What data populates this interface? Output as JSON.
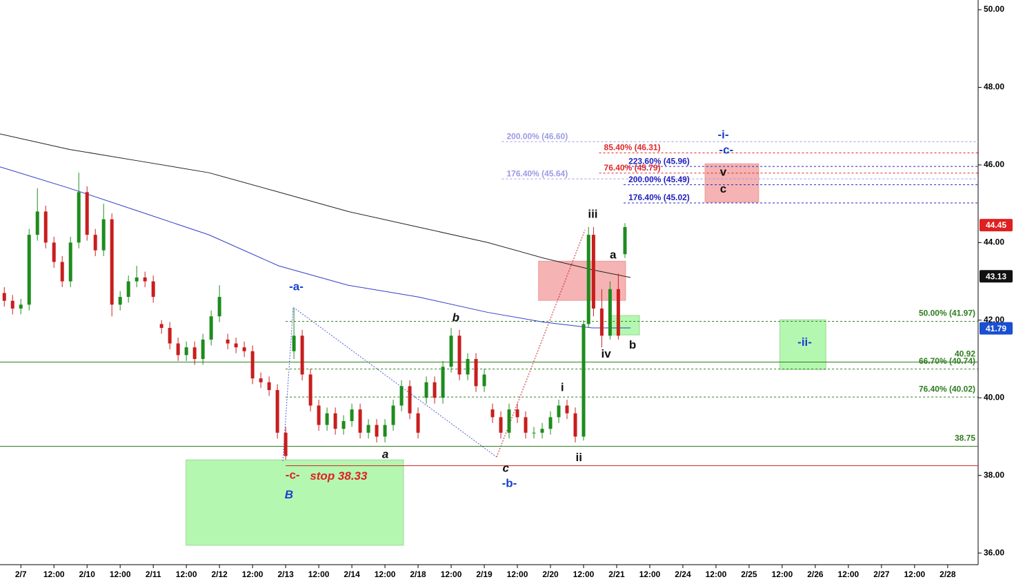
{
  "chart_data": {
    "type": "candlestick",
    "xlim": [
      -0.63,
      28.92
    ],
    "ylim": [
      35.7,
      50.25
    ],
    "xticks": [
      {
        "value": 0,
        "label": "2/7"
      },
      {
        "value": 1,
        "label": "12:00"
      },
      {
        "value": 2,
        "label": "2/10"
      },
      {
        "value": 3,
        "label": "12:00"
      },
      {
        "value": 4,
        "label": "2/11"
      },
      {
        "value": 5,
        "label": "12:00"
      },
      {
        "value": 6,
        "label": "2/12"
      },
      {
        "value": 7,
        "label": "12:00"
      },
      {
        "value": 8,
        "label": "2/13"
      },
      {
        "value": 9,
        "label": "12:00"
      },
      {
        "value": 10,
        "label": "2/14"
      },
      {
        "value": 11,
        "label": "12:00"
      },
      {
        "value": 12,
        "label": "2/18"
      },
      {
        "value": 13,
        "label": "12:00"
      },
      {
        "value": 14,
        "label": "2/19"
      },
      {
        "value": 15,
        "label": "12:00"
      },
      {
        "value": 16,
        "label": "2/20"
      },
      {
        "value": 17,
        "label": "12:00"
      },
      {
        "value": 18,
        "label": "2/21"
      },
      {
        "value": 19,
        "label": "12:00"
      },
      {
        "value": 20,
        "label": "2/24"
      },
      {
        "value": 21,
        "label": "12:00"
      },
      {
        "value": 22,
        "label": "2/25"
      },
      {
        "value": 23,
        "label": "12:00"
      },
      {
        "value": 24,
        "label": "2/26"
      },
      {
        "value": 25,
        "label": "12:00"
      },
      {
        "value": 26,
        "label": "2/27"
      },
      {
        "value": 27,
        "label": "12:00"
      },
      {
        "value": 28,
        "label": "2/28"
      }
    ],
    "yticks": [
      {
        "value": 36,
        "label": "36.00"
      },
      {
        "value": 38,
        "label": "38.00"
      },
      {
        "value": 40,
        "label": "40.00"
      },
      {
        "value": 42,
        "label": "42.00"
      },
      {
        "value": 44,
        "label": "44.00"
      },
      {
        "value": 46,
        "label": "46.00"
      },
      {
        "value": 48,
        "label": "48.00"
      },
      {
        "value": 50,
        "label": "50.00"
      }
    ],
    "up_color": "#1e8c1e",
    "down_color": "#c81e1e",
    "x": [
      -0.5,
      -0.25,
      0,
      0.25,
      0.5,
      0.75,
      1,
      1.25,
      1.5,
      1.75,
      2,
      2.25,
      2.5,
      2.75,
      3,
      3.25,
      3.5,
      3.75,
      4,
      4.25,
      4.5,
      4.75,
      5,
      5.25,
      5.5,
      5.75,
      6,
      6.25,
      6.5,
      6.75,
      7,
      7.25,
      7.5,
      7.75,
      8,
      8.25,
      8.5,
      8.75,
      9,
      9.25,
      9.5,
      9.75,
      10,
      10.25,
      10.5,
      10.75,
      11,
      11.25,
      11.5,
      11.75,
      12,
      12.25,
      12.5,
      12.75,
      13,
      13.25,
      13.5,
      13.75,
      14,
      14.25,
      14.5,
      14.75,
      15,
      15.25,
      15.5,
      15.75,
      16,
      16.25,
      16.5,
      16.75,
      17,
      17.15,
      17.3,
      17.55,
      17.8,
      18.05,
      18.25
    ],
    "ohlc": [
      [
        42.7,
        42.85,
        42.35,
        42.5
      ],
      [
        42.5,
        42.65,
        42.15,
        42.3
      ],
      [
        42.3,
        42.55,
        42.15,
        42.4
      ],
      [
        42.4,
        44.35,
        42.25,
        44.2
      ],
      [
        44.2,
        45.4,
        44.05,
        44.8
      ],
      [
        44.8,
        44.95,
        43.85,
        44.0
      ],
      [
        44.0,
        44.15,
        43.35,
        43.5
      ],
      [
        43.5,
        43.65,
        42.85,
        43.0
      ],
      [
        43.0,
        44.15,
        42.85,
        44.0
      ],
      [
        44.0,
        45.8,
        43.85,
        45.3
      ],
      [
        45.3,
        45.45,
        44.05,
        44.2
      ],
      [
        44.2,
        44.35,
        43.65,
        43.8
      ],
      [
        43.8,
        45.0,
        43.65,
        44.6
      ],
      [
        44.6,
        44.75,
        42.1,
        42.4
      ],
      [
        42.4,
        42.75,
        42.25,
        42.6
      ],
      [
        42.6,
        43.15,
        42.45,
        43.0
      ],
      [
        43.0,
        43.4,
        42.85,
        43.1
      ],
      [
        43.1,
        43.25,
        42.85,
        43.0
      ],
      [
        43.0,
        43.15,
        42.45,
        42.6
      ],
      [
        41.9,
        42.0,
        41.65,
        41.8
      ],
      [
        41.8,
        41.95,
        41.25,
        41.4
      ],
      [
        41.4,
        41.55,
        40.95,
        41.1
      ],
      [
        41.1,
        41.45,
        40.95,
        41.3
      ],
      [
        41.3,
        41.45,
        40.85,
        41.0
      ],
      [
        41.0,
        41.65,
        40.85,
        41.5
      ],
      [
        41.5,
        42.25,
        41.35,
        42.1
      ],
      [
        42.1,
        42.9,
        41.95,
        42.6
      ],
      [
        41.5,
        41.65,
        41.25,
        41.4
      ],
      [
        41.4,
        41.55,
        41.15,
        41.3
      ],
      [
        41.3,
        41.45,
        41.05,
        41.2
      ],
      [
        41.2,
        41.35,
        40.35,
        40.5
      ],
      [
        40.5,
        40.65,
        40.25,
        40.4
      ],
      [
        40.4,
        40.55,
        40.05,
        40.2
      ],
      [
        40.2,
        40.35,
        38.95,
        39.1
      ],
      [
        39.1,
        39.25,
        38.4,
        38.5
      ],
      [
        41.2,
        42.3,
        41.0,
        41.6
      ],
      [
        41.6,
        41.75,
        40.45,
        40.6
      ],
      [
        40.6,
        40.75,
        39.65,
        39.8
      ],
      [
        39.8,
        39.95,
        39.15,
        39.3
      ],
      [
        39.3,
        39.75,
        39.15,
        39.6
      ],
      [
        39.6,
        39.75,
        39.05,
        39.2
      ],
      [
        39.2,
        39.55,
        39.05,
        39.4
      ],
      [
        39.4,
        39.85,
        39.25,
        39.7
      ],
      [
        39.7,
        39.85,
        38.95,
        39.1
      ],
      [
        39.1,
        39.45,
        38.95,
        39.3
      ],
      [
        39.3,
        39.45,
        38.85,
        39.0
      ],
      [
        39.0,
        39.45,
        38.85,
        39.3
      ],
      [
        39.3,
        39.95,
        39.15,
        39.8
      ],
      [
        39.8,
        40.45,
        39.65,
        40.3
      ],
      [
        40.3,
        40.45,
        39.45,
        39.6
      ],
      [
        39.6,
        39.75,
        38.95,
        39.1
      ],
      [
        40.0,
        40.55,
        39.85,
        40.4
      ],
      [
        40.4,
        40.55,
        39.85,
        40.0
      ],
      [
        40.0,
        40.95,
        39.85,
        40.8
      ],
      [
        40.8,
        41.8,
        40.65,
        41.6
      ],
      [
        41.6,
        41.75,
        40.45,
        40.6
      ],
      [
        40.6,
        41.15,
        40.45,
        41.0
      ],
      [
        41.0,
        41.15,
        40.15,
        40.3
      ],
      [
        40.3,
        40.75,
        40.15,
        40.6
      ],
      [
        39.7,
        39.85,
        39.35,
        39.5
      ],
      [
        39.5,
        39.65,
        38.95,
        39.1
      ],
      [
        39.1,
        39.85,
        38.95,
        39.7
      ],
      [
        39.7,
        39.85,
        39.35,
        39.5
      ],
      [
        39.5,
        39.65,
        38.95,
        39.1
      ],
      [
        39.1,
        39.25,
        38.95,
        39.1
      ],
      [
        39.1,
        39.35,
        38.95,
        39.2
      ],
      [
        39.2,
        39.65,
        39.05,
        39.5
      ],
      [
        39.5,
        39.95,
        39.35,
        39.8
      ],
      [
        39.8,
        39.95,
        39.45,
        39.6
      ],
      [
        39.6,
        39.75,
        38.85,
        39.0
      ],
      [
        39.0,
        42.0,
        38.9,
        41.9
      ],
      [
        41.9,
        44.4,
        41.8,
        44.2
      ],
      [
        44.2,
        44.4,
        42.1,
        42.3
      ],
      [
        42.3,
        42.8,
        41.3,
        41.6
      ],
      [
        41.6,
        43.0,
        41.5,
        42.8
      ],
      [
        42.8,
        43.2,
        41.5,
        41.6
      ],
      [
        43.7,
        44.5,
        43.6,
        44.4
      ]
    ],
    "ma_x": [
      -0.63,
      1.47,
      3.58,
      5.68,
      7.79,
      9.89,
      12.0,
      14.11,
      15.79,
      17.26,
      18.42
    ],
    "moving_averages": [
      {
        "color": "#222222",
        "values": [
          46.8,
          46.4,
          46.1,
          45.8,
          45.3,
          44.8,
          44.4,
          44.0,
          43.6,
          43.3,
          43.1
        ]
      },
      {
        "color": "#2a3fc8",
        "values": [
          45.95,
          45.4,
          44.8,
          44.2,
          43.4,
          42.9,
          42.6,
          42.2,
          41.95,
          41.8,
          41.8
        ]
      }
    ],
    "levels": [
      {
        "value": 46.6,
        "label": "200.00% (46.60)",
        "color": "#9a9ae6",
        "style": "dashed",
        "from": 14.53,
        "side": "left"
      },
      {
        "value": 46.31,
        "label": "85.40% (46.31)",
        "color": "#e02828",
        "style": "dashed",
        "from": 17.47,
        "side": "left"
      },
      {
        "value": 45.96,
        "label": "223.60% (45.96)",
        "color": "#2020c0",
        "style": "dashed",
        "from": 18.21,
        "side": "left"
      },
      {
        "value": 45.79,
        "label": "76.40% (45.79)",
        "color": "#e02828",
        "style": "dashed",
        "from": 17.47,
        "side": "left"
      },
      {
        "value": 45.64,
        "label": "176.40% (45.64)",
        "color": "#9a9ae6",
        "style": "dashed",
        "from": 14.53,
        "side": "left"
      },
      {
        "value": 45.49,
        "label": "200.00% (45.49)",
        "color": "#2020c0",
        "style": "dashed",
        "from": 18.21,
        "side": "left"
      },
      {
        "value": 45.02,
        "label": "176.40% (45.02)",
        "color": "#2020c0",
        "style": "dashed",
        "from": 18.21,
        "side": "left"
      },
      {
        "value": 41.97,
        "label": "50.00% (41.97)",
        "color": "#2e7d1e",
        "style": "dashed",
        "from": 8.0,
        "side": "right"
      },
      {
        "value": 40.92,
        "color": "#2e7d1e",
        "style": "solid",
        "from": -0.63,
        "side": "right"
      },
      {
        "value": 40.74,
        "label": "66.70% (40.74)",
        "color": "#2e7d1e",
        "style": "dashed",
        "from": 8.0,
        "side": "right"
      },
      {
        "value": 40.02,
        "label": "76.40% (40.02)",
        "color": "#2e7d1e",
        "style": "dashed",
        "from": 8.0,
        "side": "right"
      },
      {
        "value": 38.75,
        "color": "#2e7d1e",
        "style": "solid",
        "from": -0.63,
        "side": "right"
      },
      {
        "value": 38.25,
        "color": "#d02020",
        "style": "solid",
        "from": 8.0
      }
    ],
    "zones": [
      {
        "x": [
          4.99,
          11.56
        ],
        "y": [
          36.2,
          38.4
        ],
        "color": "#b4f7b0"
      },
      {
        "x": [
          15.64,
          18.27
        ],
        "y": [
          42.51,
          43.52
        ],
        "color": "#f5b3b3"
      },
      {
        "x": [
          17.81,
          18.69
        ],
        "y": [
          41.62,
          42.12
        ],
        "color": "#b4f7b0"
      },
      {
        "x": [
          20.67,
          22.29
        ],
        "y": [
          45.04,
          46.03
        ],
        "color": "#f5b3b3"
      },
      {
        "x": [
          22.93,
          24.32
        ],
        "y": [
          40.73,
          42.01
        ],
        "color": "#b4f7b0"
      }
    ],
    "price_tags": [
      {
        "value": 44.45,
        "color": "#e02020"
      },
      {
        "value": 43.13,
        "color": "#111111"
      },
      {
        "value": 41.79,
        "color": "#1a4fd0"
      }
    ],
    "annotations": [
      {
        "text": "-a-",
        "x": 8.32,
        "y": 42.85,
        "color": "#1a3fd0",
        "italic": false
      },
      {
        "text": "b",
        "x": 13.14,
        "y": 42.05,
        "color": "#111111",
        "italic": true
      },
      {
        "text": "a",
        "x": 11.01,
        "y": 38.53,
        "color": "#111111",
        "italic": true
      },
      {
        "text": "c",
        "x": 14.65,
        "y": 38.17,
        "color": "#111111",
        "italic": true
      },
      {
        "text": "-b-",
        "x": 14.76,
        "y": 37.78,
        "color": "#1a3fd0",
        "italic": false
      },
      {
        "text": "-c-",
        "x": 8.21,
        "y": 37.99,
        "color": "#e02020",
        "italic": false
      },
      {
        "text": "stop 38.33",
        "x": 9.6,
        "y": 37.97,
        "color": "#e02020",
        "italic": true
      },
      {
        "text": "B",
        "x": 8.1,
        "y": 37.49,
        "color": "#1a3fd0",
        "italic": true
      },
      {
        "text": "i",
        "x": 16.36,
        "y": 40.25,
        "color": "#111111",
        "italic": false
      },
      {
        "text": "ii",
        "x": 16.86,
        "y": 38.45,
        "color": "#111111",
        "italic": false
      },
      {
        "text": "iii",
        "x": 17.28,
        "y": 44.72,
        "color": "#111111",
        "italic": false
      },
      {
        "text": "iv",
        "x": 17.68,
        "y": 41.12,
        "color": "#111111",
        "italic": false
      },
      {
        "text": "a",
        "x": 17.89,
        "y": 43.67,
        "color": "#111111",
        "italic": false
      },
      {
        "text": "b",
        "x": 18.48,
        "y": 41.35,
        "color": "#111111",
        "italic": false
      },
      {
        "text": "-i-",
        "x": 21.22,
        "y": 46.76,
        "color": "#1a3fd0",
        "italic": false
      },
      {
        "text": "-c-",
        "x": 21.31,
        "y": 46.37,
        "color": "#1a3fd0",
        "italic": false
      },
      {
        "text": "v",
        "x": 21.22,
        "y": 45.8,
        "color": "#111111",
        "italic": false
      },
      {
        "text": "c",
        "x": 21.22,
        "y": 45.37,
        "color": "#111111",
        "italic": false
      },
      {
        "text": "-ii-",
        "x": 23.68,
        "y": 41.42,
        "color": "#1a3fd0",
        "italic": false
      }
    ]
  }
}
